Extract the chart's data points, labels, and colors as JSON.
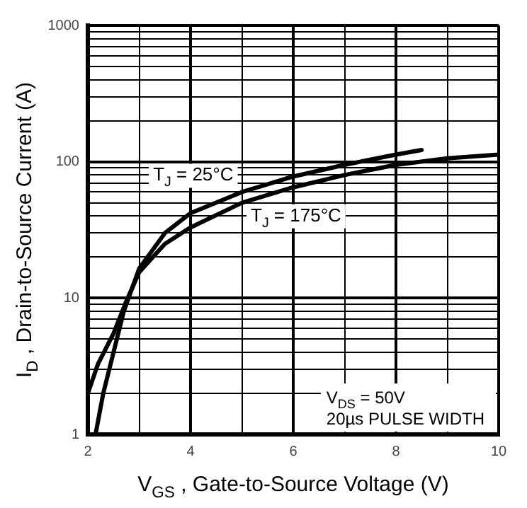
{
  "chart_data": {
    "type": "line",
    "xlabel": "V$_{GS}$ , Gate-to-Source Voltage (V)",
    "ylabel": "I$_{D}$ , Drain-to-Source Current (A)",
    "series": [
      {
        "name": "T$_{J}$ = 25°C",
        "color": "#000000",
        "x": [
          2.15,
          2.3,
          2.5,
          2.7,
          3.0,
          3.5,
          4,
          5,
          6,
          7,
          8,
          8.5
        ],
        "values": [
          1,
          2,
          4,
          8,
          16.5,
          30,
          42,
          60,
          78,
          95,
          113,
          122
        ]
      },
      {
        "name": "T$_{J}$ = 175°C",
        "color": "#000000",
        "x": [
          2,
          2.2,
          2.5,
          2.75,
          3.0,
          3.5,
          4,
          5,
          6,
          7,
          8,
          9,
          10
        ],
        "values": [
          2,
          3.3,
          5.5,
          9.5,
          15.5,
          25,
          33,
          50,
          65,
          80,
          95,
          106,
          113
        ]
      }
    ],
    "xlim": [
      2,
      10
    ],
    "xticks": [
      2,
      {
        "value": 3,
        "label": null
      },
      4,
      {
        "value": 5,
        "label": null
      },
      6,
      {
        "value": 7,
        "label": null
      },
      8,
      {
        "value": 9,
        "label": null
      },
      10
    ],
    "ylim": [
      1,
      1000
    ],
    "yticks": [
      1,
      {
        "value": 2,
        "label": null
      },
      {
        "value": 3,
        "label": null
      },
      {
        "value": 4,
        "label": null
      },
      {
        "value": 5,
        "label": null
      },
      {
        "value": 6,
        "label": null
      },
      {
        "value": 7,
        "label": null
      },
      {
        "value": 8,
        "label": null
      },
      {
        "value": 9,
        "label": null
      },
      10,
      {
        "value": 20,
        "label": null
      },
      {
        "value": 30,
        "label": null
      },
      {
        "value": 40,
        "label": null
      },
      {
        "value": 50,
        "label": null
      },
      {
        "value": 60,
        "label": null
      },
      {
        "value": 70,
        "label": null
      },
      {
        "value": 80,
        "label": null
      },
      {
        "value": 90,
        "label": null
      },
      100,
      {
        "value": 200,
        "label": null
      },
      {
        "value": 300,
        "label": null
      },
      {
        "value": 400,
        "label": null
      },
      {
        "value": 500,
        "label": null
      },
      {
        "value": 600,
        "label": null
      },
      {
        "value": 700,
        "label": null
      },
      {
        "value": 800,
        "label": null
      },
      {
        "value": 900,
        "label": null
      },
      1000
    ],
    "log": true,
    "grid": true,
    "legend": false,
    "marker": "none",
    "line_style": "solid",
    "annotations": [
      "V$_{DS}$ = 50V",
      "20µs PULSE WIDTH"
    ]
  }
}
